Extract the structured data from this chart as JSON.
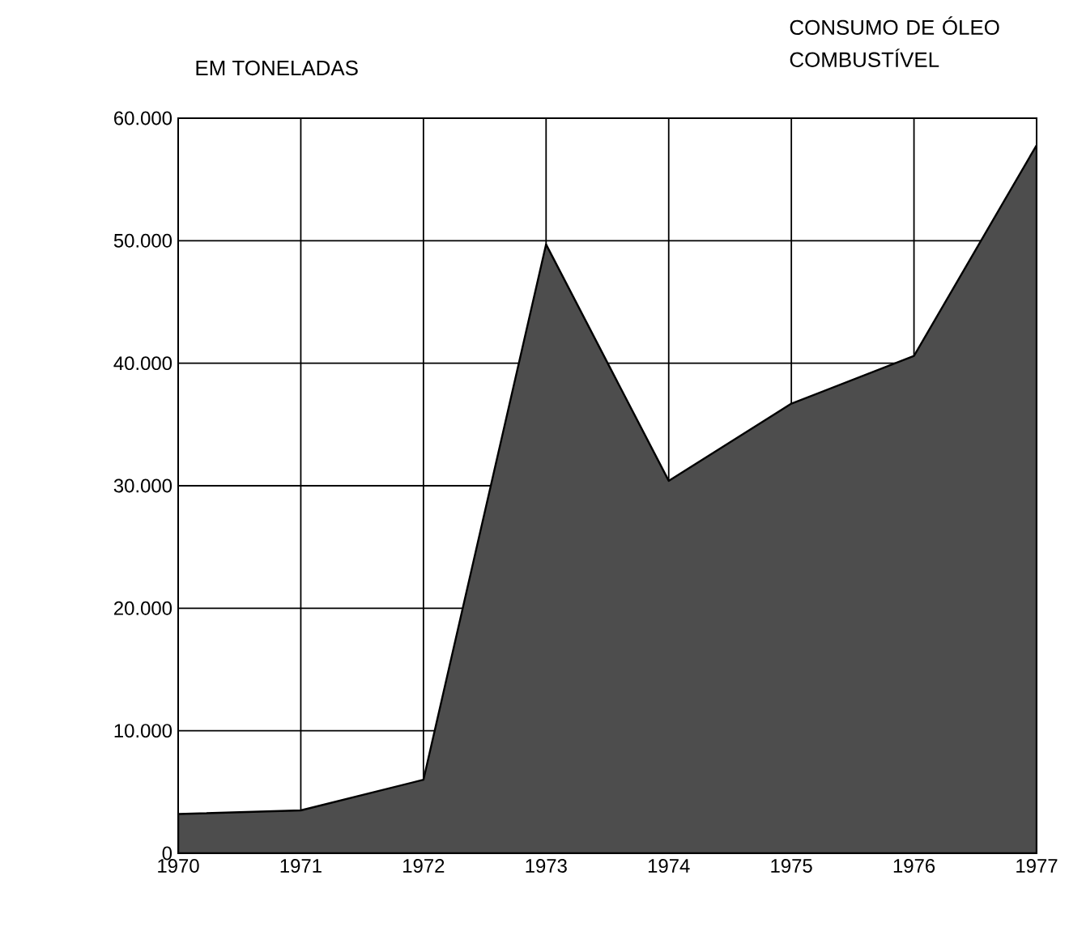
{
  "chart_data": {
    "type": "area",
    "title": "CONSUMO DE ÓLEO COMBUSTÍVEL",
    "ylabel": "EM TONELADAS",
    "x": [
      1970,
      1971,
      1972,
      1973,
      1974,
      1975,
      1976,
      1977
    ],
    "values": [
      3200,
      3500,
      6000,
      49700,
      30400,
      36700,
      40600,
      57800
    ],
    "color": "#4d4d4d",
    "xlim": [
      1970,
      1977
    ],
    "xticks": [
      1970,
      1971,
      1972,
      1973,
      1974,
      1975,
      1976,
      1977
    ],
    "ylim": [
      0,
      60000
    ],
    "yticks": [
      0,
      {
        "value": 10000,
        "label": "10.000"
      },
      {
        "value": 20000,
        "label": "20.000"
      },
      {
        "value": 30000,
        "label": "30.000"
      },
      {
        "value": 40000,
        "label": "40.000"
      },
      {
        "value": 50000,
        "label": "50.000"
      },
      {
        "value": 60000,
        "label": "60.000"
      }
    ],
    "grid": true
  }
}
